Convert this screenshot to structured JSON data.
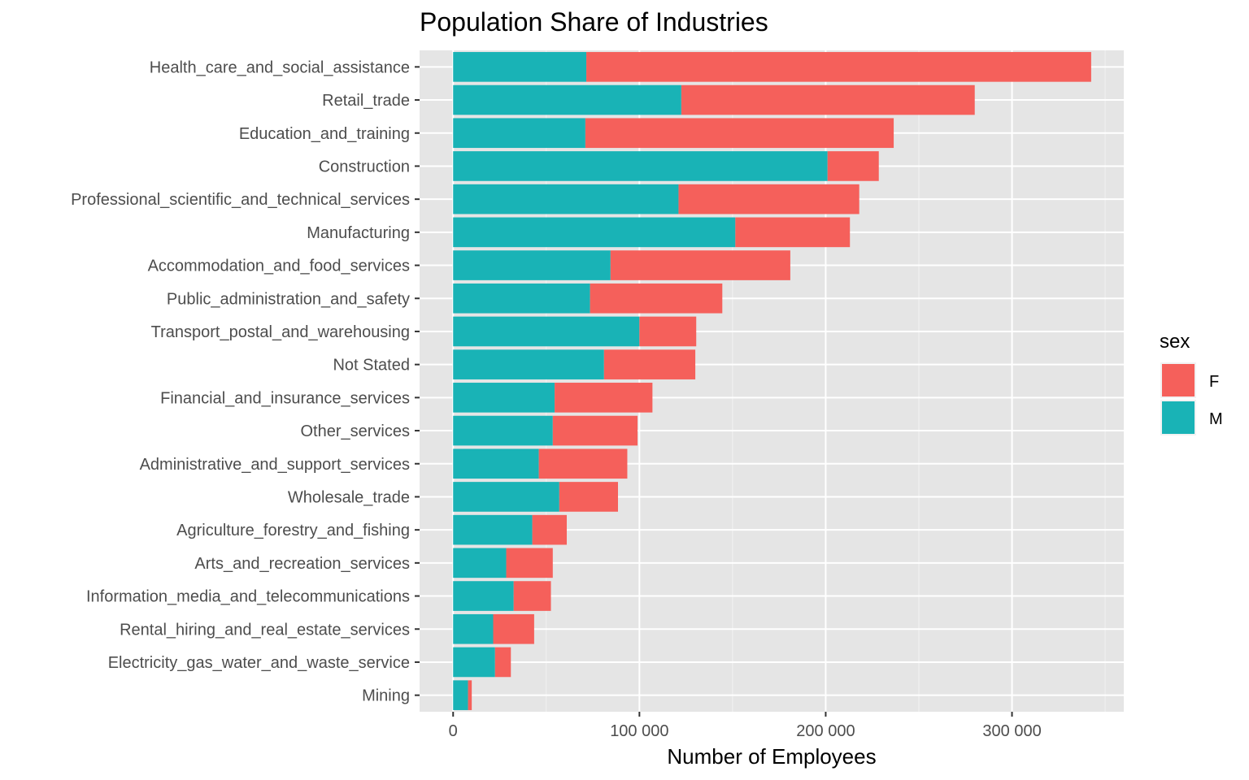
{
  "chart_data": {
    "type": "bar",
    "orientation": "horizontal",
    "stacked": true,
    "title": "Population Share of Industries",
    "xlabel": "Number of Employees",
    "ylabel": "",
    "xlim": [
      -18000,
      360000
    ],
    "x_ticks": [
      0,
      100000,
      200000,
      300000
    ],
    "x_tick_labels": [
      "0",
      "100 000",
      "200 000",
      "300 000"
    ],
    "categories": [
      "Health_care_and_social_assistance",
      "Retail_trade",
      "Education_and_training",
      "Construction",
      "Professional_scientific_and_technical_services",
      "Manufacturing",
      "Accommodation_and_food_services",
      "Public_administration_and_safety",
      "Transport_postal_and_warehousing",
      "Not Stated",
      "Financial_and_insurance_services",
      "Other_services",
      "Administrative_and_support_services",
      "Wholesale_trade",
      "Agriculture_forestry_and_fishing",
      "Arts_and_recreation_services",
      "Information_media_and_telecommunications",
      "Rental_hiring_and_real_estate_services",
      "Electricity_gas_water_and_waste_service",
      "Mining"
    ],
    "series": [
      {
        "name": "M",
        "color": "#19B3B6",
        "values": [
          71500,
          122500,
          71000,
          201000,
          121000,
          151500,
          84500,
          73500,
          100000,
          81000,
          54500,
          53500,
          46000,
          57000,
          42500,
          28500,
          32500,
          21500,
          22500,
          8000
        ]
      },
      {
        "name": "F",
        "color": "#F5605B",
        "values": [
          271000,
          157500,
          165500,
          27500,
          97000,
          61500,
          96500,
          71000,
          30500,
          49000,
          52500,
          45500,
          47500,
          31500,
          18500,
          25000,
          20000,
          22000,
          8500,
          2000
        ]
      }
    ],
    "legend": {
      "title": "sex",
      "position": "right",
      "order": [
        "F",
        "M"
      ]
    },
    "grid": true,
    "background": "#E5E5E5"
  }
}
